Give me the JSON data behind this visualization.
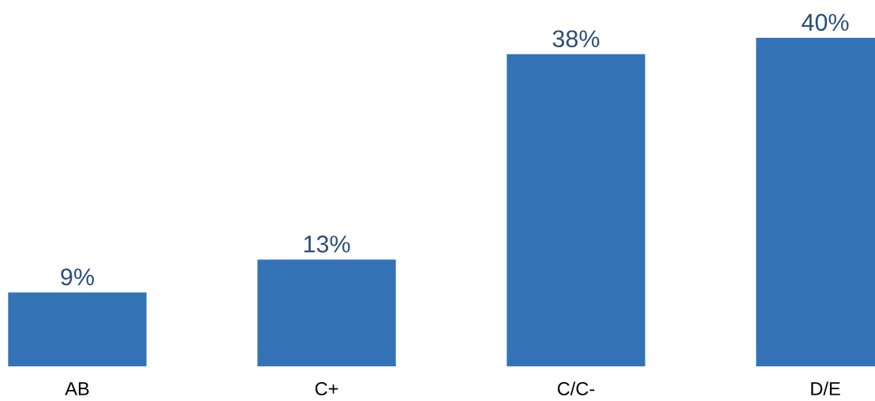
{
  "chart_data": {
    "type": "bar",
    "categories": [
      "AB",
      "C+",
      "C/C-",
      "D/E"
    ],
    "values": [
      9,
      13,
      38,
      40
    ],
    "value_labels": [
      "9%",
      "13%",
      "38%",
      "40%"
    ],
    "color": "#3373b5",
    "grid": false,
    "legend": false
  }
}
